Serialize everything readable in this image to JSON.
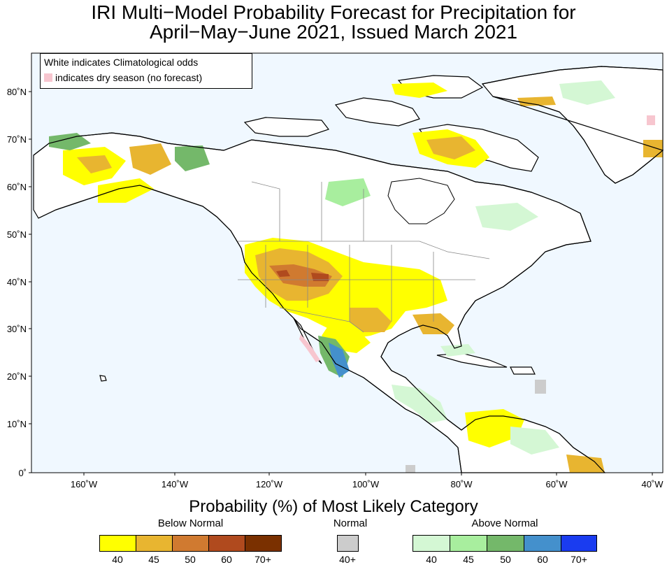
{
  "title_line1": "IRI Multi−Model Probability Forecast for Precipitation for",
  "title_line2": "April−May−June 2021, Issued March 2021",
  "map_legend": {
    "line1": "White indicates Climatological odds",
    "line2": "indicates dry season (no forecast)",
    "dry_color": "#f7c6cf"
  },
  "lat_labels": [
    "80˚N",
    "70˚N",
    "60˚N",
    "50˚N",
    "40˚N",
    "30˚N",
    "20˚N",
    "10˚N",
    "0˚"
  ],
  "lon_labels": [
    "160˚W",
    "140˚W",
    "120˚W",
    "100˚W",
    "80˚W",
    "60˚W",
    "40˚W"
  ],
  "legend": {
    "heading": "Probability (%) of Most Likely Category",
    "below_normal": {
      "label": "Below Normal",
      "colors": [
        "#ffff00",
        "#e8b530",
        "#d07a30",
        "#b04a1e",
        "#7a3000"
      ],
      "ticks": [
        "40",
        "45",
        "50",
        "60",
        "70+"
      ]
    },
    "normal": {
      "label": "Normal",
      "colors": [
        "#cccccc"
      ],
      "ticks": [
        "40+"
      ]
    },
    "above_normal": {
      "label": "Above Normal",
      "colors": [
        "#d4f7d4",
        "#a8ee9e",
        "#74b86a",
        "#4490cc",
        "#1a3cf0"
      ],
      "ticks": [
        "40",
        "45",
        "50",
        "60",
        "70+"
      ]
    }
  },
  "colors": {
    "ocean": "#f0f8ff",
    "land": "#ffffff"
  }
}
